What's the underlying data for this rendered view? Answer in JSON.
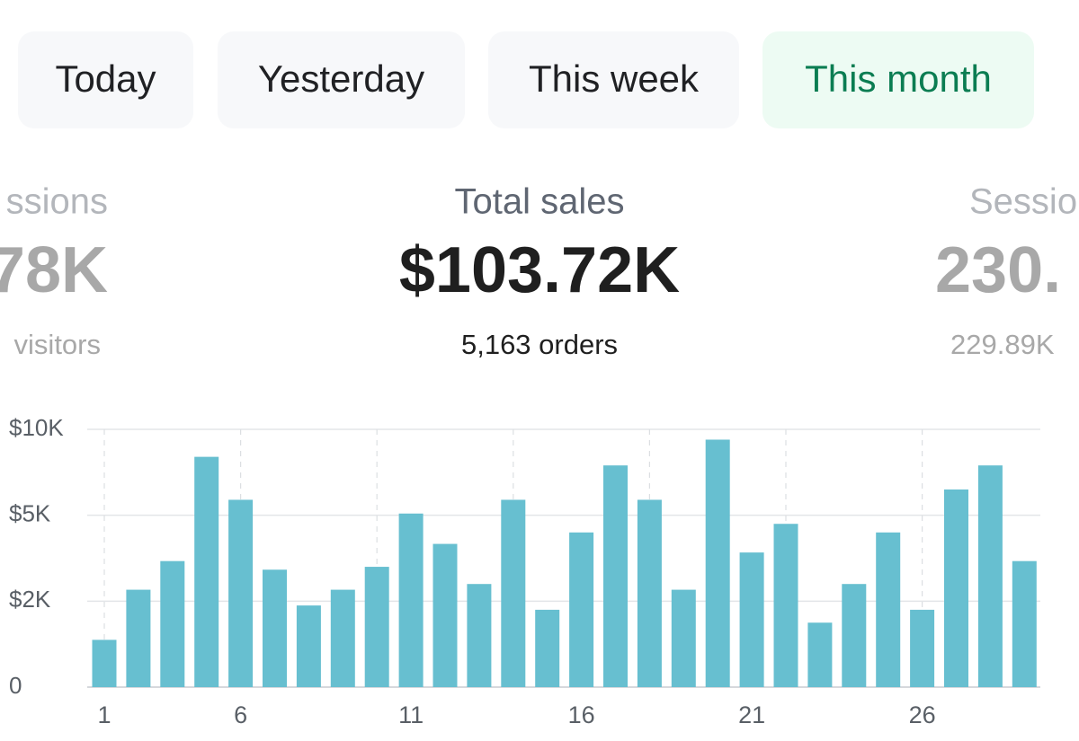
{
  "tabs": [
    "Today",
    "Yesterday",
    "This week",
    "This month"
  ],
  "active_tab": 3,
  "metrics": [
    {
      "title": "ssions",
      "value": "78K",
      "subtitle": "visitors"
    },
    {
      "title": "Total sales",
      "value": "$103.72K",
      "subtitle": "5,163 orders"
    },
    {
      "title": "Sessio",
      "value": "230.",
      "subtitle": "229.89K"
    }
  ],
  "chart_data": {
    "type": "bar",
    "categories": [
      "1",
      null,
      null,
      null,
      "6",
      null,
      null,
      null,
      null,
      "11",
      null,
      null,
      null,
      null,
      "16",
      null,
      null,
      null,
      null,
      "21",
      null,
      null,
      null,
      null,
      "26",
      null,
      null,
      null
    ],
    "values": [
      1100,
      2400,
      3400,
      8400,
      5900,
      3100,
      1900,
      2400,
      3200,
      5100,
      4000,
      2600,
      5900,
      1800,
      4400,
      7900,
      5900,
      2400,
      9400,
      3700,
      4700,
      1500,
      2600,
      4400,
      1800,
      6500,
      7900,
      3400
    ],
    "color": "#67bfd0",
    "ylim": [
      0,
      10000
    ],
    "yticks": [
      0,
      {
        "value": 2000,
        "label": "$2K"
      },
      {
        "value": 5000,
        "label": "$5K"
      },
      {
        "value": 10000,
        "label": "$10K"
      }
    ],
    "scale": "piecewise",
    "grid": true
  }
}
